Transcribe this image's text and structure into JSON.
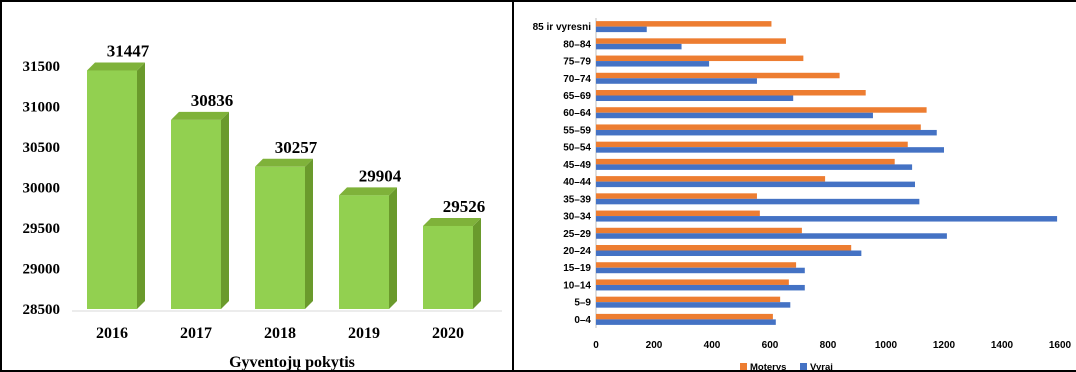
{
  "chart_data": [
    {
      "type": "bar",
      "style": "3d-column",
      "title": "",
      "xlabel": "Gyventojų pokytis",
      "ylabel": "",
      "categories": [
        "2016",
        "2017",
        "2018",
        "2019",
        "2020"
      ],
      "values": [
        31447,
        30836,
        30257,
        29904,
        29526
      ],
      "data_labels": [
        "31447",
        "30836",
        "30257",
        "29904",
        "29526"
      ],
      "yticks": [
        "28500",
        "29000",
        "29500",
        "30000",
        "30500",
        "31000",
        "31500"
      ],
      "ylim": [
        28500,
        31700
      ],
      "grid": false,
      "bar_color": "#92d050"
    },
    {
      "type": "bar",
      "orientation": "horizontal",
      "title": "",
      "categories": [
        "0–4",
        "5–9",
        "10–14",
        "15–19",
        "20–24",
        "25–29",
        "30–34",
        "35–39",
        "40–44",
        "45–49",
        "50–54",
        "55–59",
        "60–64",
        "65–69",
        "70–74",
        "75–79",
        "80–84",
        "85 ir vyresni"
      ],
      "series": [
        {
          "name": "Moterys",
          "color": "#ed7d31",
          "values": [
            610,
            635,
            665,
            690,
            880,
            710,
            565,
            555,
            790,
            1030,
            1075,
            1120,
            1140,
            930,
            840,
            715,
            655,
            605
          ]
        },
        {
          "name": "Vyrai",
          "color": "#4472c4",
          "values": [
            620,
            670,
            720,
            720,
            915,
            1210,
            1590,
            1115,
            1100,
            1090,
            1200,
            1175,
            955,
            680,
            555,
            390,
            295,
            175
          ]
        }
      ],
      "xticks": [
        "0",
        "200",
        "400",
        "600",
        "800",
        "1000",
        "1200",
        "1400",
        "1600"
      ],
      "xlim": [
        0,
        1600
      ],
      "legend_position": "bottom",
      "grid": false
    }
  ]
}
